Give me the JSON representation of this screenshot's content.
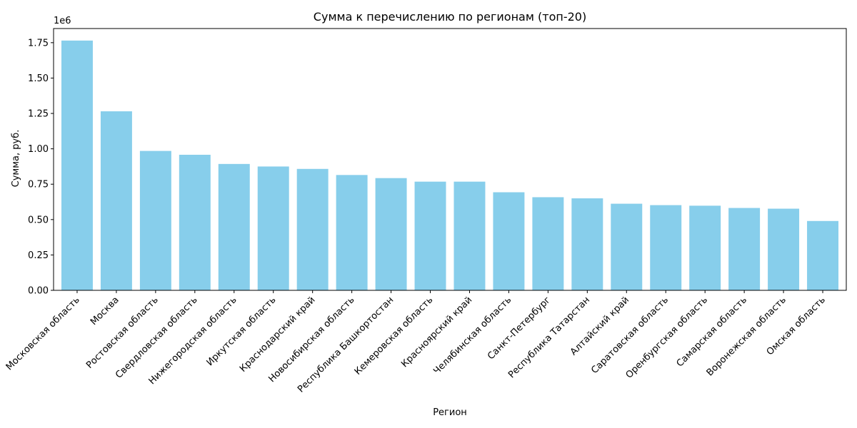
{
  "chart_data": {
    "type": "bar",
    "title": "Сумма к перечислению по регионам (топ-20)",
    "xlabel": "Регион",
    "ylabel": "Сумма, руб.",
    "y_offset_label": "1e6",
    "ylim": [
      0,
      1.85
    ],
    "y_unit_multiplier": 1000000,
    "y_ticks": [
      "0.00",
      "0.25",
      "0.50",
      "0.75",
      "1.00",
      "1.25",
      "1.50",
      "1.75"
    ],
    "categories": [
      "Московская область",
      "Москва",
      "Ростовская область",
      "Свердловская область",
      "Нижегородская область",
      "Иркутская область",
      "Краснодарский край",
      "Новосибирская область",
      "Республика Башкортостан",
      "Кемеровская область",
      "Красноярский край",
      "Челябинская область",
      "Санкт-Петербург",
      "Республика Татарстан",
      "Алтайский край",
      "Саратовская область",
      "Оренбургская область",
      "Самарская область",
      "Воронежская область",
      "Омская область"
    ],
    "values": [
      1.765,
      1.265,
      0.985,
      0.958,
      0.893,
      0.875,
      0.858,
      0.815,
      0.793,
      0.768,
      0.768,
      0.693,
      0.658,
      0.65,
      0.612,
      0.602,
      0.598,
      0.582,
      0.577,
      0.49
    ],
    "colors": {
      "bar": "#87ceeb",
      "axis": "#000000"
    },
    "grid": false
  }
}
